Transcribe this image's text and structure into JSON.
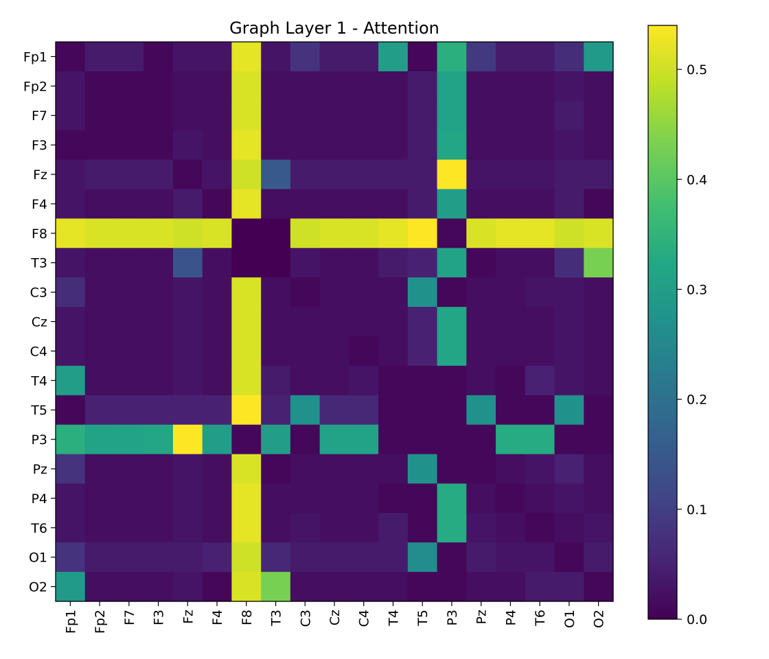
{
  "chart_data": {
    "type": "heatmap",
    "title": "Graph Layer 1 - Attention",
    "xlabel": "",
    "ylabel": "",
    "labels": [
      "Fp1",
      "Fp2",
      "F7",
      "F3",
      "Fz",
      "F4",
      "F8",
      "T3",
      "C3",
      "Cz",
      "C4",
      "T4",
      "T5",
      "P3",
      "Pz",
      "P4",
      "T6",
      "O1",
      "O2"
    ],
    "colorscale": "viridis",
    "vmin": 0.0,
    "vmax": 0.54,
    "colorbar_ticks": [
      {
        "value": 0.0,
        "label": "0.0"
      },
      {
        "value": 0.1,
        "label": "0.1"
      },
      {
        "value": 0.2,
        "label": "0.2"
      },
      {
        "value": 0.3,
        "label": "0.3"
      },
      {
        "value": 0.4,
        "label": "0.4"
      },
      {
        "value": 0.5,
        "label": "0.5"
      }
    ],
    "matrix": [
      [
        0.01,
        0.04,
        0.04,
        0.01,
        0.03,
        0.03,
        0.52,
        0.03,
        0.08,
        0.04,
        0.04,
        0.3,
        0.01,
        0.34,
        0.09,
        0.04,
        0.04,
        0.07,
        0.29
      ],
      [
        0.03,
        0.01,
        0.01,
        0.01,
        0.02,
        0.02,
        0.51,
        0.02,
        0.02,
        0.02,
        0.02,
        0.02,
        0.04,
        0.31,
        0.02,
        0.02,
        0.02,
        0.03,
        0.02
      ],
      [
        0.03,
        0.01,
        0.01,
        0.01,
        0.02,
        0.02,
        0.51,
        0.02,
        0.02,
        0.02,
        0.02,
        0.02,
        0.04,
        0.31,
        0.02,
        0.02,
        0.02,
        0.04,
        0.02
      ],
      [
        0.01,
        0.01,
        0.01,
        0.01,
        0.03,
        0.02,
        0.52,
        0.02,
        0.02,
        0.02,
        0.02,
        0.02,
        0.04,
        0.32,
        0.02,
        0.02,
        0.02,
        0.03,
        0.02
      ],
      [
        0.03,
        0.04,
        0.04,
        0.04,
        0.01,
        0.03,
        0.5,
        0.15,
        0.04,
        0.04,
        0.04,
        0.04,
        0.04,
        0.54,
        0.03,
        0.03,
        0.03,
        0.04,
        0.04
      ],
      [
        0.03,
        0.02,
        0.02,
        0.02,
        0.04,
        0.01,
        0.52,
        0.02,
        0.02,
        0.02,
        0.02,
        0.02,
        0.04,
        0.3,
        0.02,
        0.02,
        0.02,
        0.04,
        0.01
      ],
      [
        0.52,
        0.51,
        0.51,
        0.51,
        0.5,
        0.51,
        0.0,
        0.0,
        0.5,
        0.51,
        0.51,
        0.52,
        0.54,
        0.01,
        0.51,
        0.52,
        0.52,
        0.5,
        0.51
      ],
      [
        0.03,
        0.02,
        0.02,
        0.02,
        0.14,
        0.02,
        0.0,
        0.0,
        0.03,
        0.02,
        0.02,
        0.04,
        0.05,
        0.31,
        0.01,
        0.02,
        0.02,
        0.07,
        0.43
      ],
      [
        0.07,
        0.02,
        0.02,
        0.02,
        0.03,
        0.02,
        0.51,
        0.02,
        0.01,
        0.02,
        0.02,
        0.02,
        0.27,
        0.01,
        0.02,
        0.02,
        0.03,
        0.03,
        0.02
      ],
      [
        0.03,
        0.02,
        0.02,
        0.02,
        0.03,
        0.02,
        0.51,
        0.02,
        0.02,
        0.02,
        0.02,
        0.02,
        0.05,
        0.32,
        0.02,
        0.02,
        0.02,
        0.03,
        0.02
      ],
      [
        0.03,
        0.02,
        0.02,
        0.02,
        0.03,
        0.02,
        0.51,
        0.02,
        0.02,
        0.02,
        0.01,
        0.02,
        0.05,
        0.32,
        0.02,
        0.02,
        0.02,
        0.03,
        0.02
      ],
      [
        0.3,
        0.02,
        0.02,
        0.02,
        0.03,
        0.02,
        0.51,
        0.04,
        0.02,
        0.02,
        0.03,
        0.01,
        0.01,
        0.01,
        0.02,
        0.01,
        0.05,
        0.03,
        0.02
      ],
      [
        0.01,
        0.05,
        0.05,
        0.05,
        0.05,
        0.05,
        0.54,
        0.05,
        0.27,
        0.06,
        0.06,
        0.01,
        0.01,
        0.01,
        0.27,
        0.01,
        0.01,
        0.27,
        0.01
      ],
      [
        0.34,
        0.31,
        0.31,
        0.32,
        0.54,
        0.3,
        0.01,
        0.3,
        0.01,
        0.31,
        0.31,
        0.01,
        0.01,
        0.01,
        0.01,
        0.33,
        0.33,
        0.01,
        0.01
      ],
      [
        0.08,
        0.02,
        0.02,
        0.02,
        0.03,
        0.02,
        0.51,
        0.01,
        0.02,
        0.02,
        0.02,
        0.02,
        0.27,
        0.01,
        0.01,
        0.02,
        0.03,
        0.05,
        0.02
      ],
      [
        0.03,
        0.02,
        0.02,
        0.02,
        0.03,
        0.02,
        0.52,
        0.02,
        0.02,
        0.02,
        0.02,
        0.01,
        0.01,
        0.33,
        0.02,
        0.01,
        0.02,
        0.03,
        0.02
      ],
      [
        0.03,
        0.02,
        0.02,
        0.02,
        0.03,
        0.02,
        0.52,
        0.02,
        0.03,
        0.02,
        0.02,
        0.04,
        0.01,
        0.33,
        0.03,
        0.02,
        0.01,
        0.02,
        0.03
      ],
      [
        0.08,
        0.04,
        0.04,
        0.04,
        0.04,
        0.05,
        0.5,
        0.06,
        0.04,
        0.04,
        0.04,
        0.04,
        0.26,
        0.01,
        0.04,
        0.03,
        0.03,
        0.01,
        0.04
      ],
      [
        0.29,
        0.02,
        0.02,
        0.02,
        0.03,
        0.01,
        0.51,
        0.43,
        0.02,
        0.02,
        0.02,
        0.02,
        0.01,
        0.01,
        0.02,
        0.02,
        0.04,
        0.04,
        0.01
      ]
    ]
  }
}
